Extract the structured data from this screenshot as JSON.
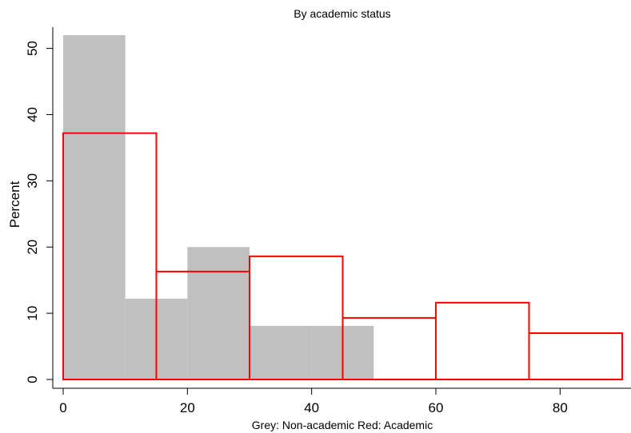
{
  "chart_data": {
    "type": "bar",
    "title": "By academic status",
    "ylabel": "Percent",
    "xlabel": "",
    "note": "Grey: Non-academic  Red: Academic",
    "xlim": [
      0,
      90
    ],
    "ylim": [
      0,
      52
    ],
    "x_ticks": [
      0,
      20,
      40,
      60,
      80
    ],
    "y_ticks": [
      0,
      10,
      20,
      30,
      40,
      50
    ],
    "grid": false,
    "series": [
      {
        "name": "Non-academic",
        "style": "filled",
        "color": "#c0c0c0",
        "bins": [
          {
            "x0": 0,
            "x1": 10,
            "value": 52
          },
          {
            "x0": 10,
            "x1": 20,
            "value": 12.2
          },
          {
            "x0": 20,
            "x1": 30,
            "value": 20
          },
          {
            "x0": 30,
            "x1": 40,
            "value": 8.1
          },
          {
            "x0": 40,
            "x1": 50,
            "value": 8.1
          }
        ]
      },
      {
        "name": "Academic",
        "style": "outline",
        "color": "#ff0000",
        "bins": [
          {
            "x0": 0,
            "x1": 15,
            "value": 37.2
          },
          {
            "x0": 15,
            "x1": 30,
            "value": 16.3
          },
          {
            "x0": 30,
            "x1": 45,
            "value": 18.6
          },
          {
            "x0": 45,
            "x1": 60,
            "value": 9.3
          },
          {
            "x0": 60,
            "x1": 75,
            "value": 11.6
          },
          {
            "x0": 75,
            "x1": 90,
            "value": 7
          }
        ]
      }
    ]
  }
}
